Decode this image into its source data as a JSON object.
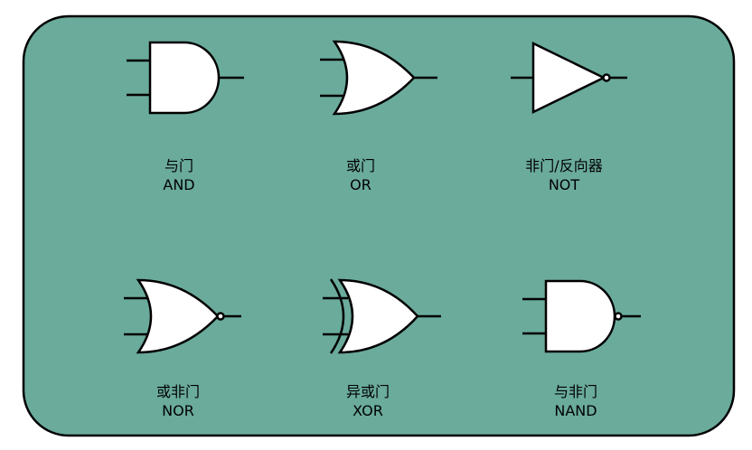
{
  "colors": {
    "background": "#6aab9c",
    "border": "#000000",
    "gate_fill": "#ffffff",
    "stroke": "#000000"
  },
  "gates": [
    {
      "id": "and",
      "icon": "and-gate-icon",
      "label_zh": "与门",
      "label_en": "AND"
    },
    {
      "id": "or",
      "icon": "or-gate-icon",
      "label_zh": "或门",
      "label_en": "OR"
    },
    {
      "id": "not",
      "icon": "not-gate-icon",
      "label_zh": "非门/反向器",
      "label_en": "NOT"
    },
    {
      "id": "nor",
      "icon": "nor-gate-icon",
      "label_zh": "或非门",
      "label_en": "NOR"
    },
    {
      "id": "xor",
      "icon": "xor-gate-icon",
      "label_zh": "异或门",
      "label_en": "XOR"
    },
    {
      "id": "nand",
      "icon": "nand-gate-icon",
      "label_zh": "与非门",
      "label_en": "NAND"
    }
  ]
}
